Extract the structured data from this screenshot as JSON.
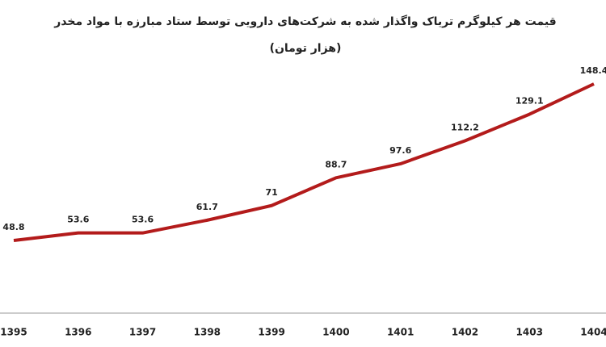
{
  "chart_data": {
    "type": "line",
    "title": "قیمت هر کیلوگرم تریاک واگذار شده به شرکت‌های دارویی توسط ستاد مبارزه با مواد مخدر",
    "subtitle": "(هزار تومان)",
    "categories": [
      "1395",
      "1396",
      "1397",
      "1398",
      "1399",
      "1400",
      "1401",
      "1402",
      "1403",
      "1404"
    ],
    "values": [
      48.8,
      53.6,
      53.6,
      61.7,
      71,
      88.7,
      97.6,
      112.2,
      129.1,
      148.4
    ],
    "color": "#b31b1b"
  }
}
